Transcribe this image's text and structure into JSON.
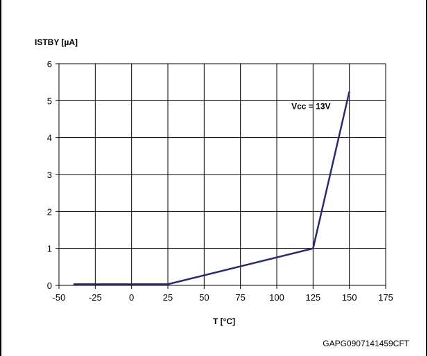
{
  "chart_data": {
    "type": "line",
    "title": "",
    "xlabel": "T [°C]",
    "ylabel": "ISTBY [µA]",
    "xlim": [
      -50,
      175
    ],
    "ylim": [
      0,
      6
    ],
    "x_ticks": [
      -50,
      -25,
      0,
      25,
      50,
      75,
      100,
      125,
      150,
      175
    ],
    "y_ticks": [
      0,
      1,
      2,
      3,
      4,
      5,
      6
    ],
    "grid": true,
    "legend": "none",
    "series": [
      {
        "color": "#2b2b6f",
        "x": [
          -40,
          25,
          125,
          150
        ],
        "y": [
          0.03,
          0.03,
          1.0,
          5.25
        ]
      }
    ],
    "annotations": [
      {
        "text": "Vcc = 13V",
        "x": 125,
        "y": 4.85
      }
    ]
  },
  "figure_id": "GAPG0907141459CFT"
}
